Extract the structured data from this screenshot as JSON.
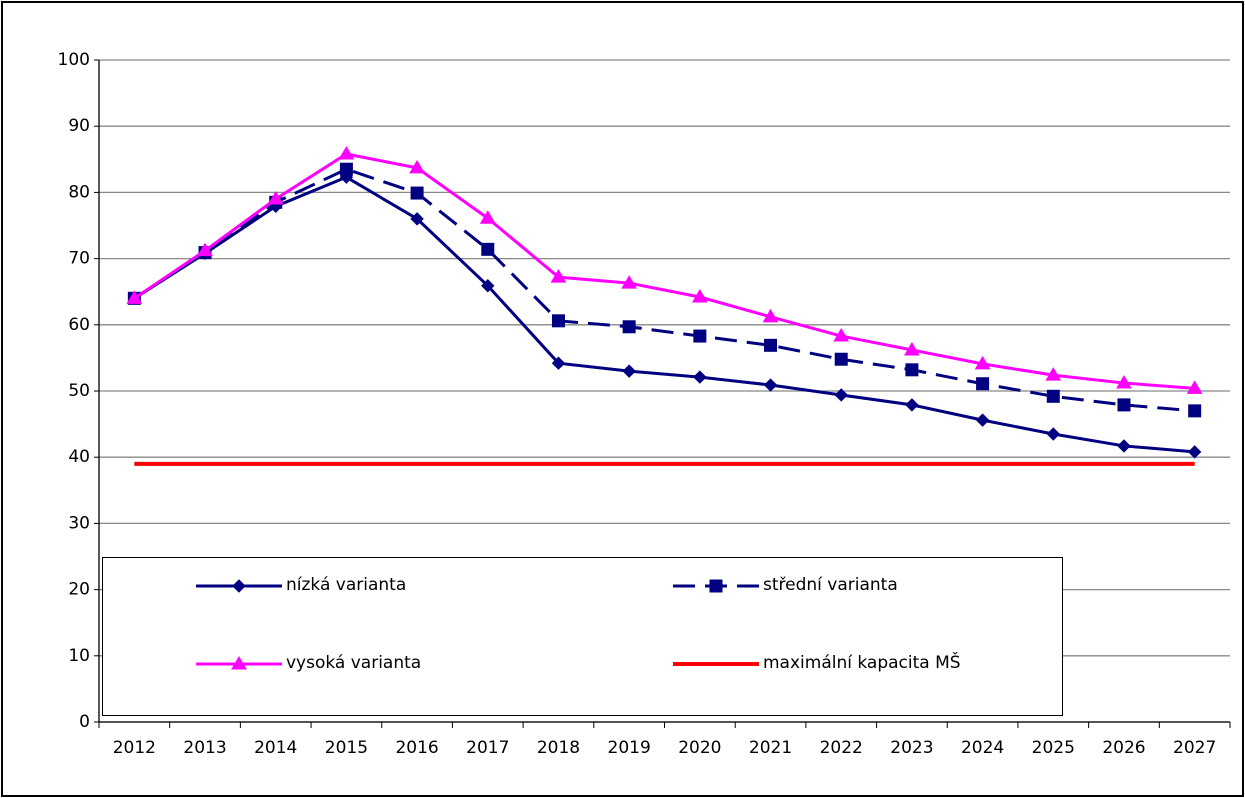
{
  "chart_data": {
    "type": "line",
    "categories": [
      "2012",
      "2013",
      "2014",
      "2015",
      "2016",
      "2017",
      "2018",
      "2019",
      "2020",
      "2021",
      "2022",
      "2023",
      "2024",
      "2025",
      "2026",
      "2027"
    ],
    "series": [
      {
        "name": "nízká varianta",
        "color": "#000080",
        "marker": "diamond",
        "dash": false,
        "values": [
          64,
          70.8,
          77.9,
          82.3,
          76,
          65.9,
          54.2,
          53,
          52.1,
          50.9,
          49.4,
          47.9,
          45.6,
          43.5,
          41.7,
          40.8
        ]
      },
      {
        "name": "střední varianta",
        "color": "#000080",
        "marker": "square",
        "dash": true,
        "values": [
          64,
          70.9,
          78.5,
          83.5,
          79.9,
          71.4,
          60.6,
          59.7,
          58.3,
          56.9,
          54.8,
          53.2,
          51.1,
          49.2,
          47.9,
          47
        ]
      },
      {
        "name": "vysoká varianta",
        "color": "#ff00ff",
        "marker": "triangle",
        "dash": false,
        "values": [
          64,
          71.2,
          79,
          85.8,
          83.7,
          76.1,
          67.2,
          66.3,
          64.2,
          61.2,
          58.3,
          56.2,
          54.1,
          52.4,
          51.2,
          50.4
        ]
      },
      {
        "name": "maximální kapacita MŠ",
        "color": "#ff0000",
        "marker": "none",
        "dash": false,
        "values": [
          39,
          39,
          39,
          39,
          39,
          39,
          39,
          39,
          39,
          39,
          39,
          39,
          39,
          39,
          39,
          39
        ]
      }
    ],
    "ylim": [
      0,
      100
    ],
    "yticks": [
      0,
      10,
      20,
      30,
      40,
      50,
      60,
      70,
      80,
      90,
      100
    ],
    "grid": true
  }
}
